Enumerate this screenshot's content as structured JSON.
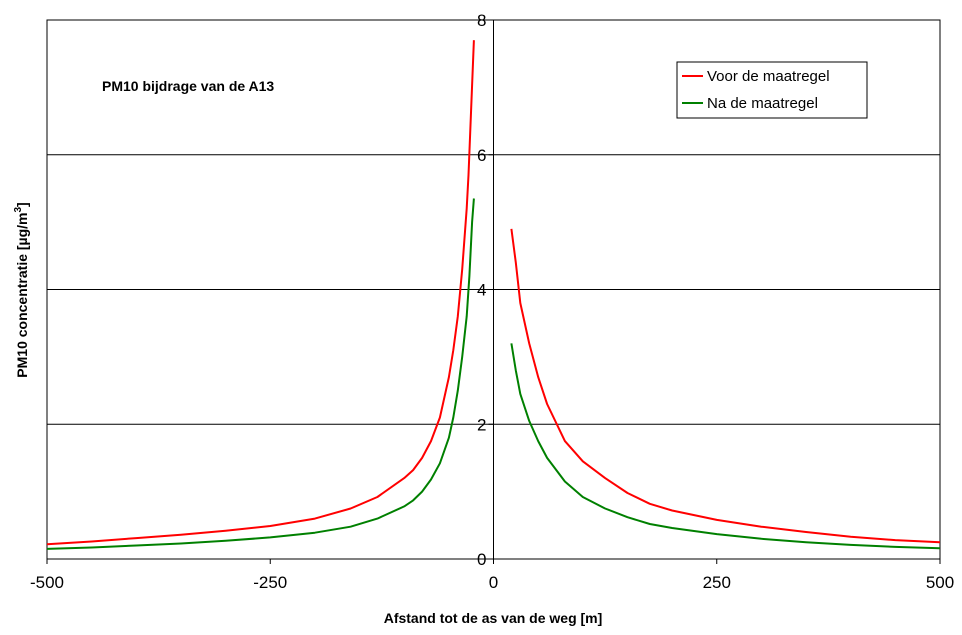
{
  "chart_data": {
    "type": "line",
    "title": "",
    "annotation": "PM10 bijdrage van de A13",
    "xlabel": "Afstand tot de as van de weg [m]",
    "ylabel_main": "PM10 concentratie [µg/m",
    "ylabel_sup": "3",
    "ylabel_end": "]",
    "xlim": [
      -500,
      500
    ],
    "ylim": [
      0,
      8
    ],
    "xticks": [
      -500,
      -250,
      0,
      250,
      500
    ],
    "yticks": [
      0,
      2,
      4,
      6,
      8
    ],
    "grid": "horizontal",
    "legend": "top-right",
    "series": [
      {
        "name": "Voor de maatregel",
        "color": "#ff0000",
        "segments": [
          [
            [
              -500,
              0.22
            ],
            [
              -450,
              0.26
            ],
            [
              -400,
              0.31
            ],
            [
              -350,
              0.36
            ],
            [
              -300,
              0.42
            ],
            [
              -250,
              0.49
            ],
            [
              -200,
              0.6
            ],
            [
              -160,
              0.75
            ],
            [
              -130,
              0.92
            ],
            [
              -100,
              1.2
            ],
            [
              -90,
              1.32
            ],
            [
              -80,
              1.5
            ],
            [
              -70,
              1.75
            ],
            [
              -60,
              2.1
            ],
            [
              -50,
              2.7
            ],
            [
              -45,
              3.1
            ],
            [
              -40,
              3.6
            ],
            [
              -35,
              4.3
            ],
            [
              -30,
              5.2
            ],
            [
              -28,
              5.7
            ],
            [
              -25,
              6.7
            ],
            [
              -22,
              7.7
            ]
          ],
          [
            [
              20,
              4.9
            ],
            [
              25,
              4.4
            ],
            [
              30,
              3.8
            ],
            [
              40,
              3.2
            ],
            [
              50,
              2.7
            ],
            [
              60,
              2.3
            ],
            [
              80,
              1.75
            ],
            [
              100,
              1.45
            ],
            [
              125,
              1.2
            ],
            [
              150,
              0.98
            ],
            [
              175,
              0.82
            ],
            [
              200,
              0.72
            ],
            [
              250,
              0.58
            ],
            [
              300,
              0.48
            ],
            [
              350,
              0.4
            ],
            [
              400,
              0.33
            ],
            [
              450,
              0.28
            ],
            [
              500,
              0.25
            ]
          ]
        ]
      },
      {
        "name": "Na de maatregel",
        "color": "#008000",
        "segments": [
          [
            [
              -500,
              0.15
            ],
            [
              -450,
              0.17
            ],
            [
              -400,
              0.2
            ],
            [
              -350,
              0.23
            ],
            [
              -300,
              0.27
            ],
            [
              -250,
              0.32
            ],
            [
              -200,
              0.39
            ],
            [
              -160,
              0.48
            ],
            [
              -130,
              0.6
            ],
            [
              -100,
              0.78
            ],
            [
              -90,
              0.87
            ],
            [
              -80,
              1.0
            ],
            [
              -70,
              1.18
            ],
            [
              -60,
              1.42
            ],
            [
              -50,
              1.8
            ],
            [
              -45,
              2.1
            ],
            [
              -40,
              2.5
            ],
            [
              -35,
              3.0
            ],
            [
              -30,
              3.6
            ],
            [
              -27,
              4.2
            ],
            [
              -24,
              5.0
            ],
            [
              -22,
              5.35
            ]
          ],
          [
            [
              20,
              3.2
            ],
            [
              25,
              2.8
            ],
            [
              30,
              2.45
            ],
            [
              40,
              2.05
            ],
            [
              50,
              1.75
            ],
            [
              60,
              1.5
            ],
            [
              80,
              1.15
            ],
            [
              100,
              0.92
            ],
            [
              125,
              0.75
            ],
            [
              150,
              0.62
            ],
            [
              175,
              0.52
            ],
            [
              200,
              0.46
            ],
            [
              250,
              0.37
            ],
            [
              300,
              0.3
            ],
            [
              350,
              0.25
            ],
            [
              400,
              0.21
            ],
            [
              450,
              0.18
            ],
            [
              500,
              0.16
            ]
          ]
        ]
      }
    ]
  }
}
